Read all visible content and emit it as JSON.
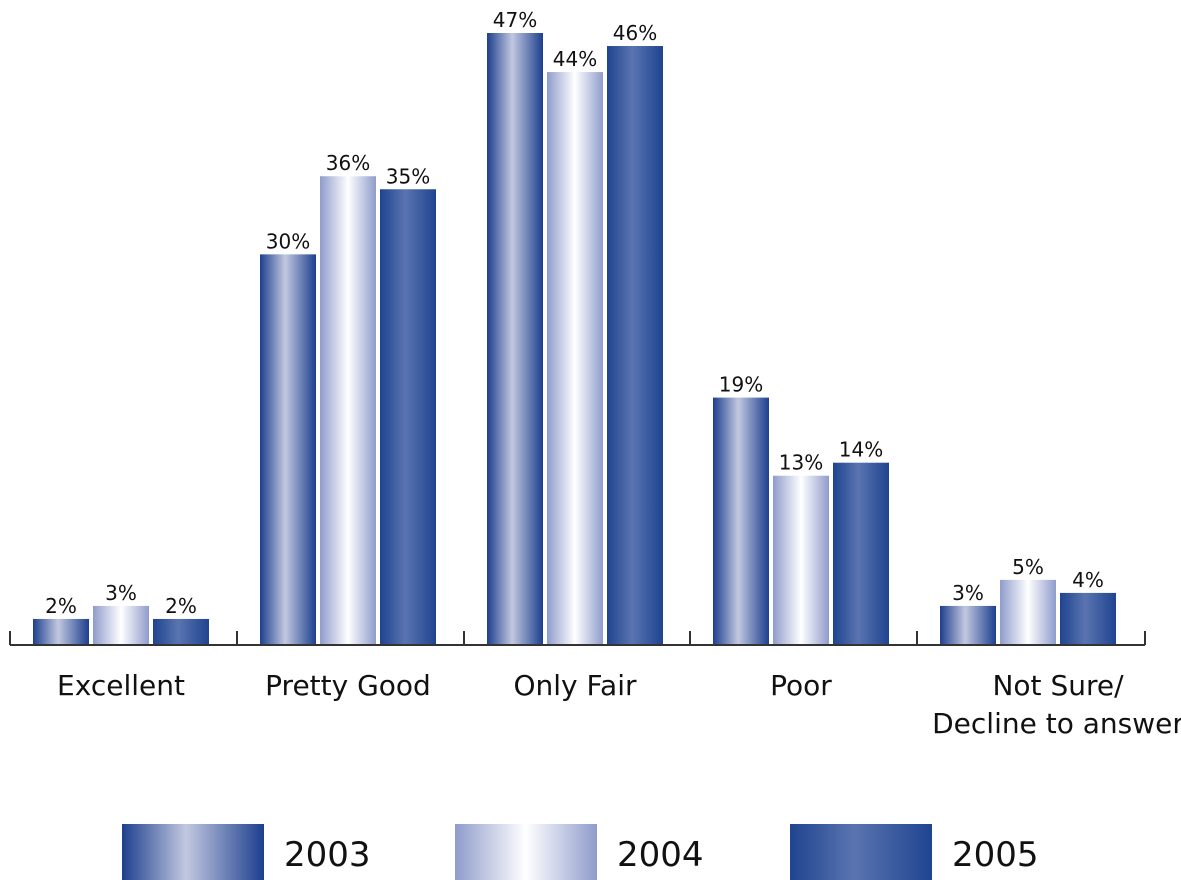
{
  "chart_data": {
    "type": "bar",
    "categories": [
      "Excellent",
      "Pretty Good",
      "Only Fair",
      "Poor",
      "Not Sure/\nDecline to answer"
    ],
    "series": [
      {
        "name": "2003",
        "values": [
          2,
          30,
          47,
          19,
          3
        ],
        "labels": [
          "2%",
          "30%",
          "47%",
          "19%",
          "3%"
        ]
      },
      {
        "name": "2004",
        "values": [
          3,
          36,
          44,
          13,
          5
        ],
        "labels": [
          "3%",
          "36%",
          "44%",
          "13%",
          "5%"
        ]
      },
      {
        "name": "2005",
        "values": [
          2,
          35,
          46,
          14,
          4
        ],
        "labels": [
          "2%",
          "35%",
          "46%",
          "14%",
          "4%"
        ]
      }
    ],
    "value_unit": "%",
    "ylim": [
      0,
      48
    ],
    "grid": false,
    "legend_position": "bottom",
    "colors": {
      "2003": {
        "gradient": [
          "#1d3f8e",
          "#c2c8e0",
          "#1d3f8e"
        ],
        "style": "horizontal-metallic"
      },
      "2004": {
        "gradient": [
          "#8f9ccb",
          "#ffffff",
          "#8f9ccb"
        ],
        "style": "horizontal-metallic-light"
      },
      "2005": {
        "gradient": [
          "#1f4490",
          "#5a74b0",
          "#1f4490"
        ],
        "style": "horizontal-solid-blue"
      },
      "axis": "#333333"
    }
  }
}
